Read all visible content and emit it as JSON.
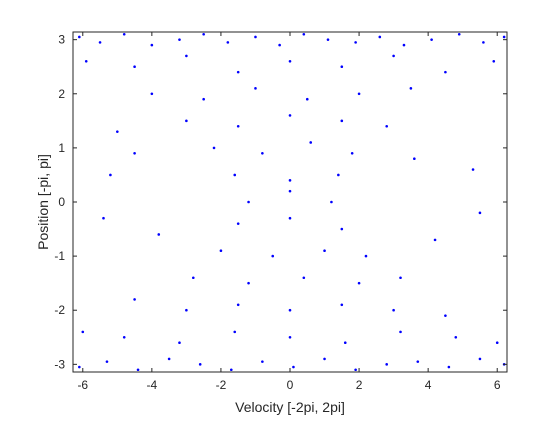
{
  "chart_data": {
    "type": "scatter",
    "title": "",
    "xlabel": "Velocity [-2pi, 2pi]",
    "ylabel": "Position [-pi, pi]",
    "xlim": [
      -6.2832,
      6.2832
    ],
    "ylim": [
      -3.1416,
      3.1416
    ],
    "xticks": [
      -6,
      -4,
      -2,
      0,
      2,
      4,
      6
    ],
    "yticks": [
      -3,
      -2,
      -1,
      0,
      1,
      2,
      3
    ],
    "xtick_labels": [
      "-6",
      "-4",
      "-2",
      "0",
      "2",
      "4",
      "6"
    ],
    "ytick_labels": [
      "-3",
      "-2",
      "-1",
      "0",
      "1",
      "2",
      "3"
    ],
    "grid": false,
    "box": true,
    "marker_color": "#0000ff",
    "series": [
      {
        "points": [
          [
            -6.1,
            3.05
          ],
          [
            -5.5,
            2.95
          ],
          [
            -4.8,
            3.1
          ],
          [
            -4.0,
            2.9
          ],
          [
            -3.2,
            3.0
          ],
          [
            -2.5,
            3.1
          ],
          [
            -1.8,
            2.95
          ],
          [
            -1.0,
            3.05
          ],
          [
            -0.3,
            2.9
          ],
          [
            0.4,
            3.1
          ],
          [
            1.1,
            3.0
          ],
          [
            1.9,
            2.95
          ],
          [
            2.6,
            3.05
          ],
          [
            3.3,
            2.9
          ],
          [
            4.1,
            3.0
          ],
          [
            4.9,
            3.1
          ],
          [
            5.6,
            2.95
          ],
          [
            6.2,
            3.05
          ],
          [
            -5.9,
            2.6
          ],
          [
            -4.5,
            2.5
          ],
          [
            -3.0,
            2.7
          ],
          [
            -1.5,
            2.4
          ],
          [
            0.0,
            2.6
          ],
          [
            1.5,
            2.5
          ],
          [
            3.0,
            2.7
          ],
          [
            4.5,
            2.4
          ],
          [
            5.9,
            2.6
          ],
          [
            -4.0,
            2.0
          ],
          [
            -2.5,
            1.9
          ],
          [
            -1.0,
            2.1
          ],
          [
            0.5,
            1.9
          ],
          [
            2.0,
            2.0
          ],
          [
            3.5,
            2.1
          ],
          [
            -3.0,
            1.5
          ],
          [
            -1.5,
            1.4
          ],
          [
            0.0,
            1.6
          ],
          [
            1.5,
            1.5
          ],
          [
            2.8,
            1.4
          ],
          [
            -2.2,
            1.0
          ],
          [
            -0.8,
            0.9
          ],
          [
            0.6,
            1.1
          ],
          [
            1.8,
            0.9
          ],
          [
            -1.6,
            0.5
          ],
          [
            0.0,
            0.4
          ],
          [
            1.4,
            0.5
          ],
          [
            -1.2,
            0.0
          ],
          [
            0.0,
            0.2
          ],
          [
            1.2,
            0.0
          ],
          [
            -1.5,
            -0.4
          ],
          [
            0.0,
            -0.3
          ],
          [
            1.5,
            -0.5
          ],
          [
            -2.0,
            -0.9
          ],
          [
            -0.5,
            -1.0
          ],
          [
            1.0,
            -0.9
          ],
          [
            2.2,
            -1.0
          ],
          [
            -2.8,
            -1.4
          ],
          [
            -1.2,
            -1.5
          ],
          [
            0.4,
            -1.4
          ],
          [
            2.0,
            -1.5
          ],
          [
            3.2,
            -1.4
          ],
          [
            -4.5,
            -1.8
          ],
          [
            -3.0,
            -2.0
          ],
          [
            -1.5,
            -1.9
          ],
          [
            0.0,
            -2.0
          ],
          [
            1.5,
            -1.9
          ],
          [
            3.0,
            -2.0
          ],
          [
            4.5,
            -2.1
          ],
          [
            -6.0,
            -2.4
          ],
          [
            -4.8,
            -2.5
          ],
          [
            -3.2,
            -2.6
          ],
          [
            -1.6,
            -2.4
          ],
          [
            0.0,
            -2.5
          ],
          [
            1.6,
            -2.6
          ],
          [
            3.2,
            -2.4
          ],
          [
            4.8,
            -2.5
          ],
          [
            6.0,
            -2.6
          ],
          [
            -6.1,
            -3.05
          ],
          [
            -5.3,
            -2.95
          ],
          [
            -4.4,
            -3.1
          ],
          [
            -3.5,
            -2.9
          ],
          [
            -2.6,
            -3.0
          ],
          [
            -1.7,
            -3.1
          ],
          [
            -0.8,
            -2.95
          ],
          [
            0.1,
            -3.05
          ],
          [
            1.0,
            -2.9
          ],
          [
            1.9,
            -3.1
          ],
          [
            2.8,
            -3.0
          ],
          [
            3.7,
            -2.95
          ],
          [
            4.6,
            -3.05
          ],
          [
            5.5,
            -2.9
          ],
          [
            6.2,
            -3.0
          ],
          [
            -5.2,
            0.5
          ],
          [
            -5.4,
            -0.3
          ],
          [
            5.3,
            0.6
          ],
          [
            5.5,
            -0.2
          ],
          [
            -4.5,
            0.9
          ],
          [
            4.2,
            -0.7
          ],
          [
            -3.8,
            -0.6
          ],
          [
            3.6,
            0.8
          ],
          [
            -5.0,
            1.3
          ]
        ]
      }
    ]
  }
}
